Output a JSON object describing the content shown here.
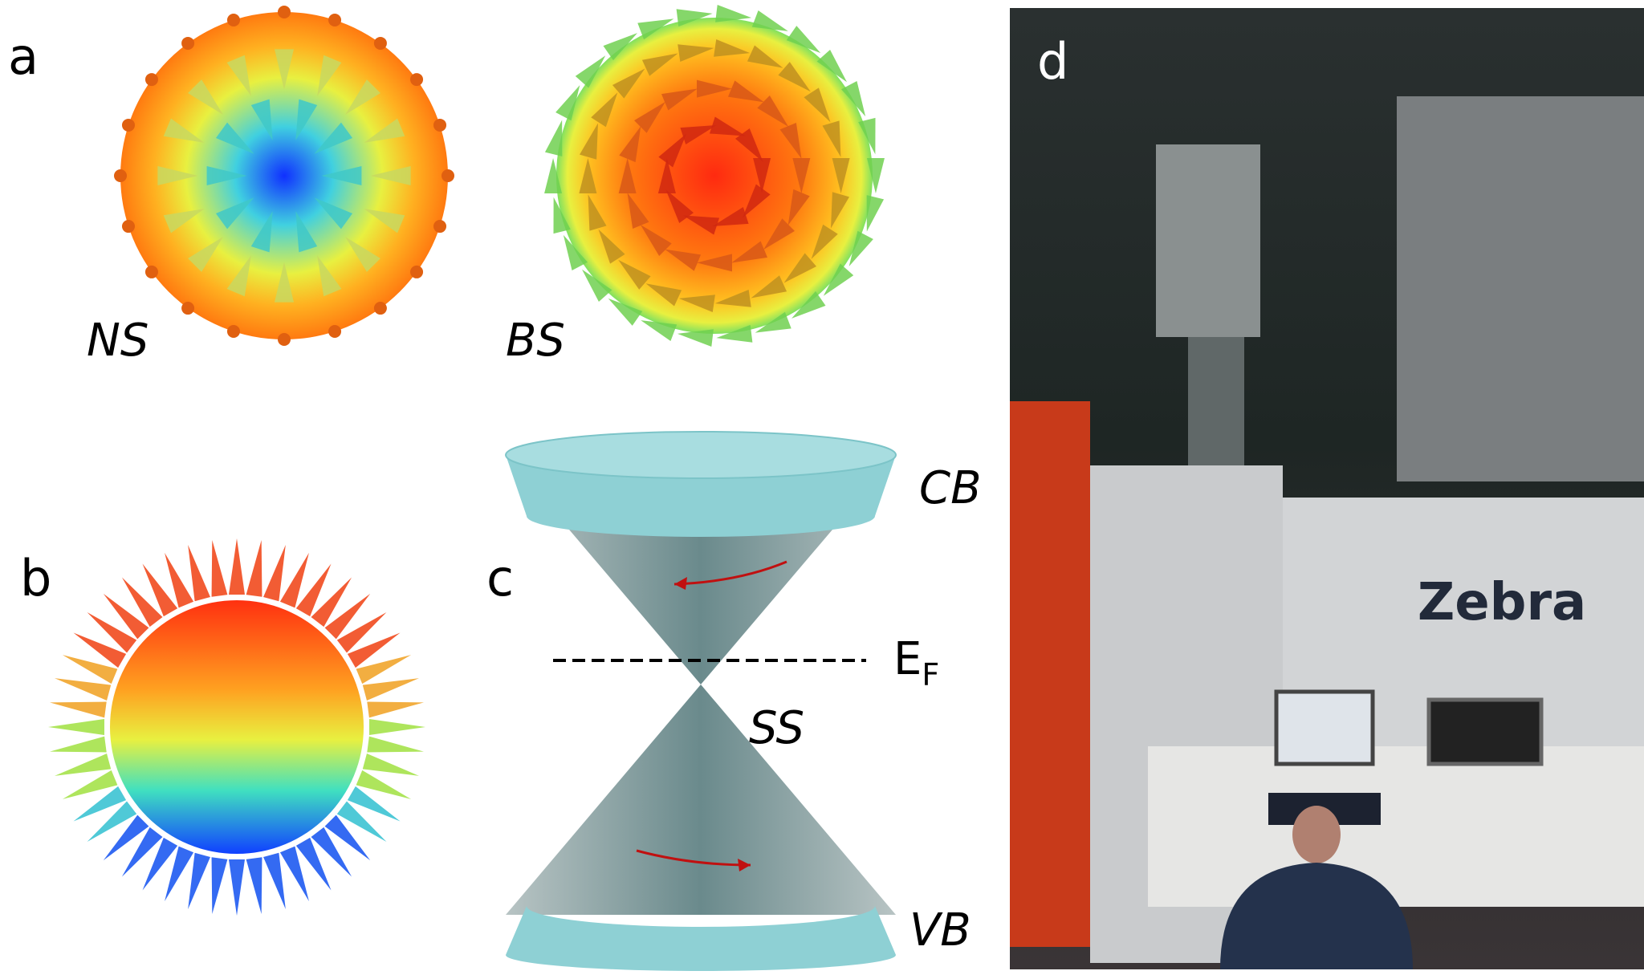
{
  "panels": {
    "a": {
      "label": "a",
      "left": "NS",
      "right": "BS"
    },
    "b": {
      "label": "b"
    },
    "c": {
      "label": "c",
      "cb": "CB",
      "ef": {
        "main": "E",
        "sub": "F"
      },
      "ss": "SS",
      "vb": "VB"
    },
    "d": {
      "label": "d",
      "sign": "Zebra"
    }
  }
}
